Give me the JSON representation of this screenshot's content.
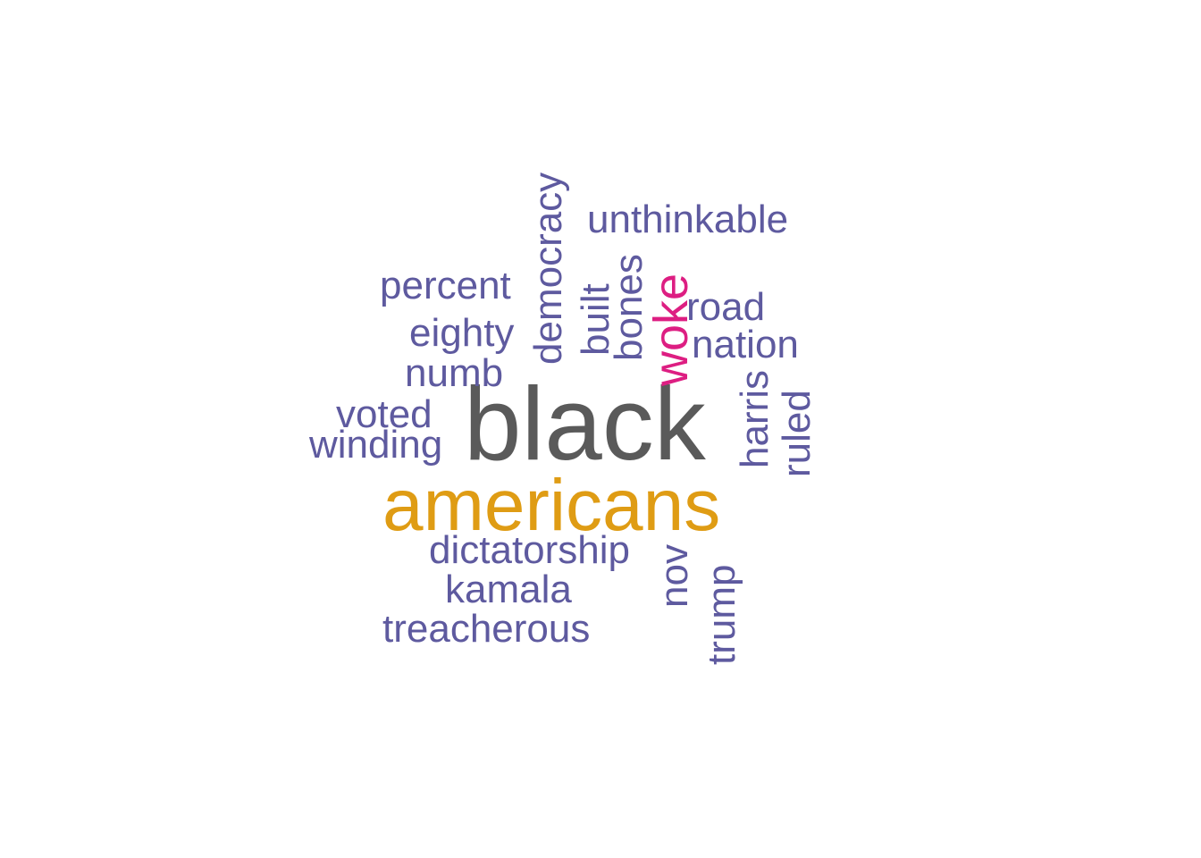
{
  "colors": {
    "tier_1": "#5a5a5a",
    "tier_2": "#df9c14",
    "tier_3": "#dd1e82",
    "tier_4": "#5e5a9f"
  },
  "words": {
    "black": "black",
    "americans": "americans",
    "woke": "woke",
    "unthinkable": "unthinkable",
    "democracy": "democracy",
    "percent": "percent",
    "built": "built",
    "bones": "bones",
    "road": "road",
    "nation": "nation",
    "eighty": "eighty",
    "numb": "numb",
    "voted": "voted",
    "winding": "winding",
    "harris": "harris",
    "ruled": "ruled",
    "dictatorship": "dictatorship",
    "kamala": "kamala",
    "treacherous": "treacherous",
    "nov": "nov",
    "trump": "trump"
  }
}
